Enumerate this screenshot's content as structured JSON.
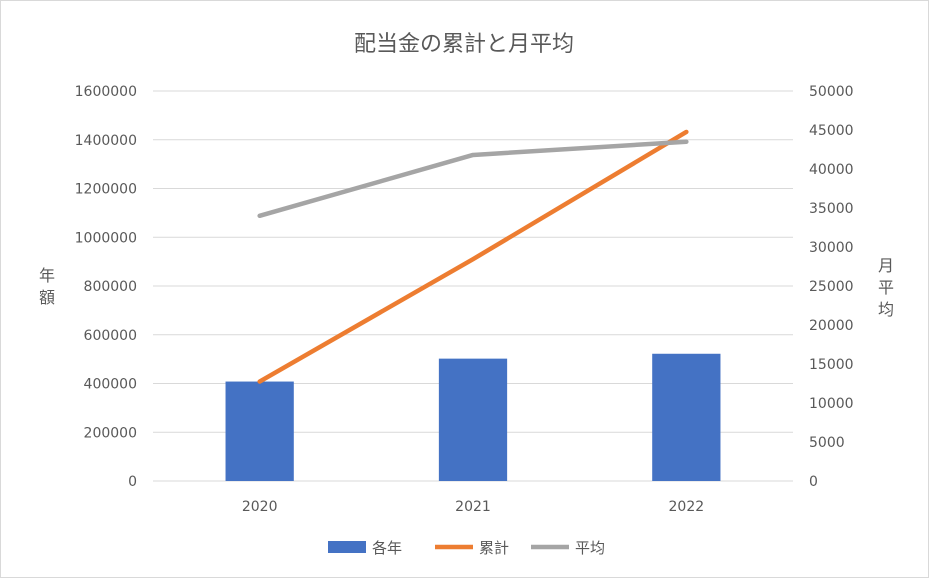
{
  "chart_data": {
    "type": "bar",
    "title": "配当金の累計と月平均",
    "categories": [
      "2020",
      "2021",
      "2022"
    ],
    "y_left": {
      "label": "年額",
      "range": [
        0,
        1600000
      ],
      "ticks": [
        "0",
        "200000",
        "400000",
        "600000",
        "800000",
        "1000000",
        "1200000",
        "1400000",
        "1600000"
      ]
    },
    "y_right": {
      "label": "月平均",
      "range": [
        0,
        50000
      ],
      "ticks": [
        "0",
        "5000",
        "10000",
        "15000",
        "20000",
        "25000",
        "30000",
        "35000",
        "40000",
        "45000",
        "50000"
      ]
    },
    "series": [
      {
        "name": "各年",
        "type": "bar",
        "axis": "left",
        "color": "#4472C4",
        "values": [
          408000,
          502000,
          522000
        ]
      },
      {
        "name": "累計",
        "type": "line",
        "axis": "left",
        "color": "#ED7D31",
        "values": [
          408000,
          910000,
          1432000
        ]
      },
      {
        "name": "平均",
        "type": "line",
        "axis": "right",
        "color": "#A5A5A5",
        "values": [
          34000,
          41800,
          43500
        ]
      }
    ],
    "grid": true,
    "legend_position": "bottom"
  }
}
